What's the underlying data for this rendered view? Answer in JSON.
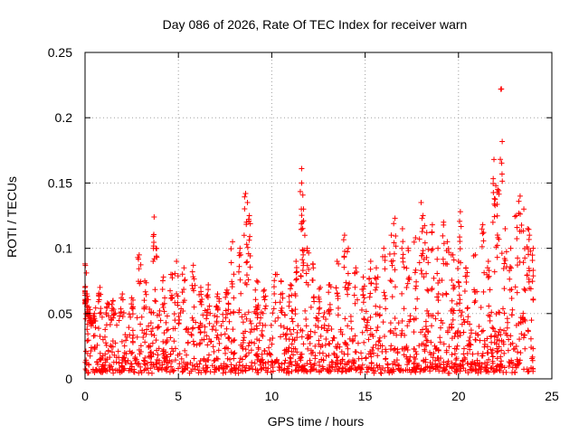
{
  "chart_data": {
    "type": "scatter",
    "title": "Day 086 of 2026, Rate Of TEC Index for receiver warn",
    "xlabel": "GPS time / hours",
    "ylabel": "ROTI / TECUs",
    "xlim": [
      0,
      25
    ],
    "ylim": [
      0,
      0.25
    ],
    "xticks": [
      0,
      5,
      10,
      15,
      20,
      25
    ],
    "yticks": [
      0,
      0.05,
      0.1,
      0.15,
      0.2,
      0.25
    ],
    "xtick_labels": [
      "0",
      "5",
      "10",
      "15",
      "20",
      "25"
    ],
    "ytick_labels": [
      "0",
      "0.05",
      "0.1",
      "0.15",
      "0.2",
      "0.25"
    ],
    "grid": true,
    "marker": "+",
    "color": "#ff0000",
    "series": [
      {
        "name": "ROTI",
        "x": [
          0.0,
          0.0,
          0.1,
          0.2,
          0.3,
          0.5,
          0.8,
          1.2,
          1.5,
          2.0,
          2.5,
          2.9,
          3.2,
          3.7,
          3.8,
          4.2,
          4.6,
          4.9,
          5.3,
          5.8,
          6.2,
          6.6,
          7.1,
          7.6,
          7.9,
          8.3,
          8.6,
          8.7,
          8.8,
          9.2,
          9.6,
          10.2,
          10.5,
          11.0,
          11.3,
          11.6,
          11.6,
          11.7,
          11.9,
          12.2,
          12.6,
          13.1,
          13.5,
          13.9,
          14.1,
          14.5,
          14.9,
          15.3,
          15.6,
          16.0,
          16.4,
          16.6,
          17.0,
          17.3,
          17.7,
          18.0,
          18.1,
          18.3,
          18.6,
          18.9,
          19.2,
          19.4,
          19.7,
          20.0,
          20.1,
          20.4,
          20.9,
          21.3,
          21.6,
          21.9,
          22.0,
          22.1,
          22.3,
          22.5,
          22.8,
          23.1,
          23.3,
          23.5,
          23.7,
          23.8,
          24.0
        ],
        "y": [
          0.088,
          0.07,
          0.065,
          0.055,
          0.045,
          0.05,
          0.07,
          0.058,
          0.06,
          0.065,
          0.062,
          0.095,
          0.075,
          0.124,
          0.1,
          0.078,
          0.08,
          0.09,
          0.085,
          0.087,
          0.07,
          0.072,
          0.065,
          0.068,
          0.105,
          0.1,
          0.142,
          0.135,
          0.125,
          0.075,
          0.068,
          0.08,
          0.075,
          0.072,
          0.09,
          0.161,
          0.15,
          0.13,
          0.1,
          0.088,
          0.07,
          0.072,
          0.09,
          0.11,
          0.1,
          0.085,
          0.078,
          0.09,
          0.085,
          0.1,
          0.11,
          0.123,
          0.115,
          0.1,
          0.108,
          0.135,
          0.125,
          0.112,
          0.118,
          0.1,
          0.12,
          0.105,
          0.095,
          0.09,
          0.128,
          0.085,
          0.095,
          0.118,
          0.09,
          0.168,
          0.148,
          0.145,
          0.222,
          0.115,
          0.1,
          0.125,
          0.14,
          0.13,
          0.115,
          0.11,
          0.1
        ],
        "note": "dense band of roughly 0.005 to 0.05 TECU spans the whole day"
      }
    ]
  }
}
